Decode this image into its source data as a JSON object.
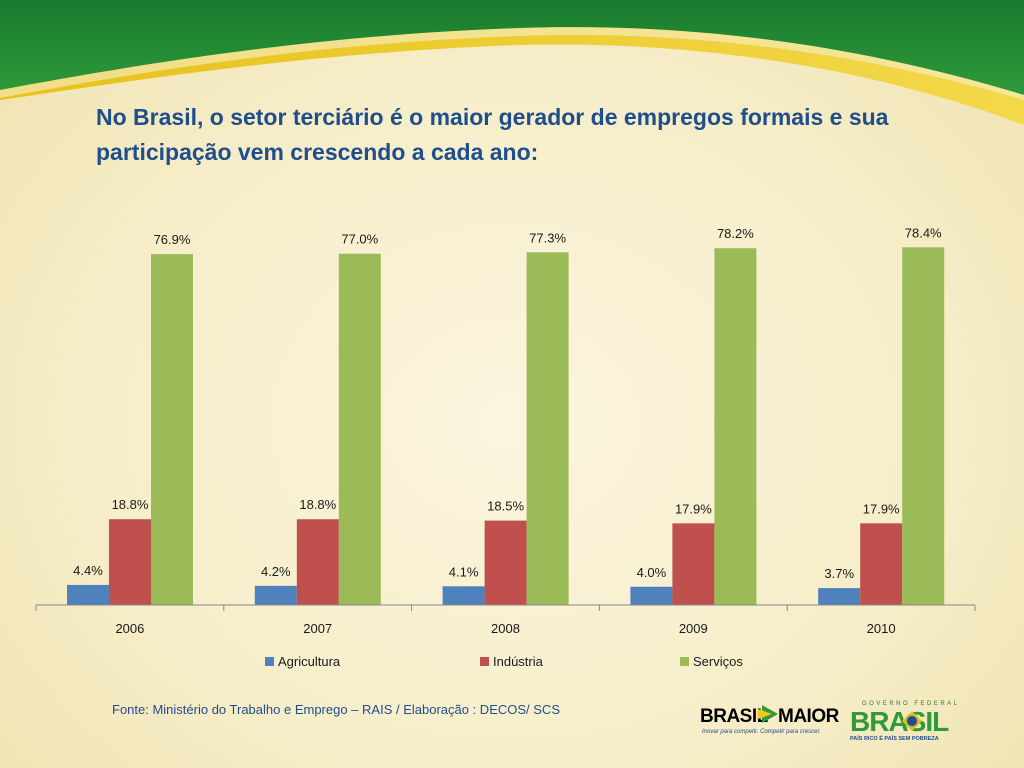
{
  "title": "No Brasil, o setor terciário é o maior gerador de empregos formais e sua participação vem crescendo a cada ano:",
  "source": "Fonte: Ministério do Trabalho e Emprego – RAIS / Elaboração : DECOS/ SCS",
  "logos": {
    "brasil_maior": {
      "text_left": "BRASIL",
      "text_right": "MAIOR",
      "tagline": "Inovar para competir. Competir para crescer."
    },
    "governo": {
      "top": "GOVERNO FEDERAL",
      "main": "BRASIL",
      "tagline": "PAÍS RICO É PAÍS SEM POBREZA"
    }
  },
  "colors": {
    "agricultura": "#4f81bd",
    "industria": "#c0504d",
    "servicos": "#9bbb59",
    "title": "#1f4e8c"
  },
  "chart_data": {
    "type": "bar",
    "categories": [
      "2006",
      "2007",
      "2008",
      "2009",
      "2010"
    ],
    "series": [
      {
        "name": "Agricultura",
        "values": [
          4.4,
          4.2,
          4.1,
          4.0,
          3.7
        ],
        "labels": [
          "4.4%",
          "4.2%",
          "4.1%",
          "4.0%",
          "3.7%"
        ],
        "color": "#4f81bd"
      },
      {
        "name": "Indústria",
        "values": [
          18.8,
          18.8,
          18.5,
          17.9,
          17.9
        ],
        "labels": [
          "18.8%",
          "18.8%",
          "18.5%",
          "17.9%",
          "17.9%"
        ],
        "color": "#c0504d"
      },
      {
        "name": "Serviços",
        "values": [
          76.9,
          77.0,
          77.3,
          78.2,
          78.4
        ],
        "labels": [
          "76.9%",
          "77.0%",
          "77.3%",
          "78.2%",
          "78.4%"
        ],
        "color": "#9bbb59"
      }
    ],
    "ylim": [
      0,
      80
    ],
    "legend": "bottom",
    "grid": false
  }
}
